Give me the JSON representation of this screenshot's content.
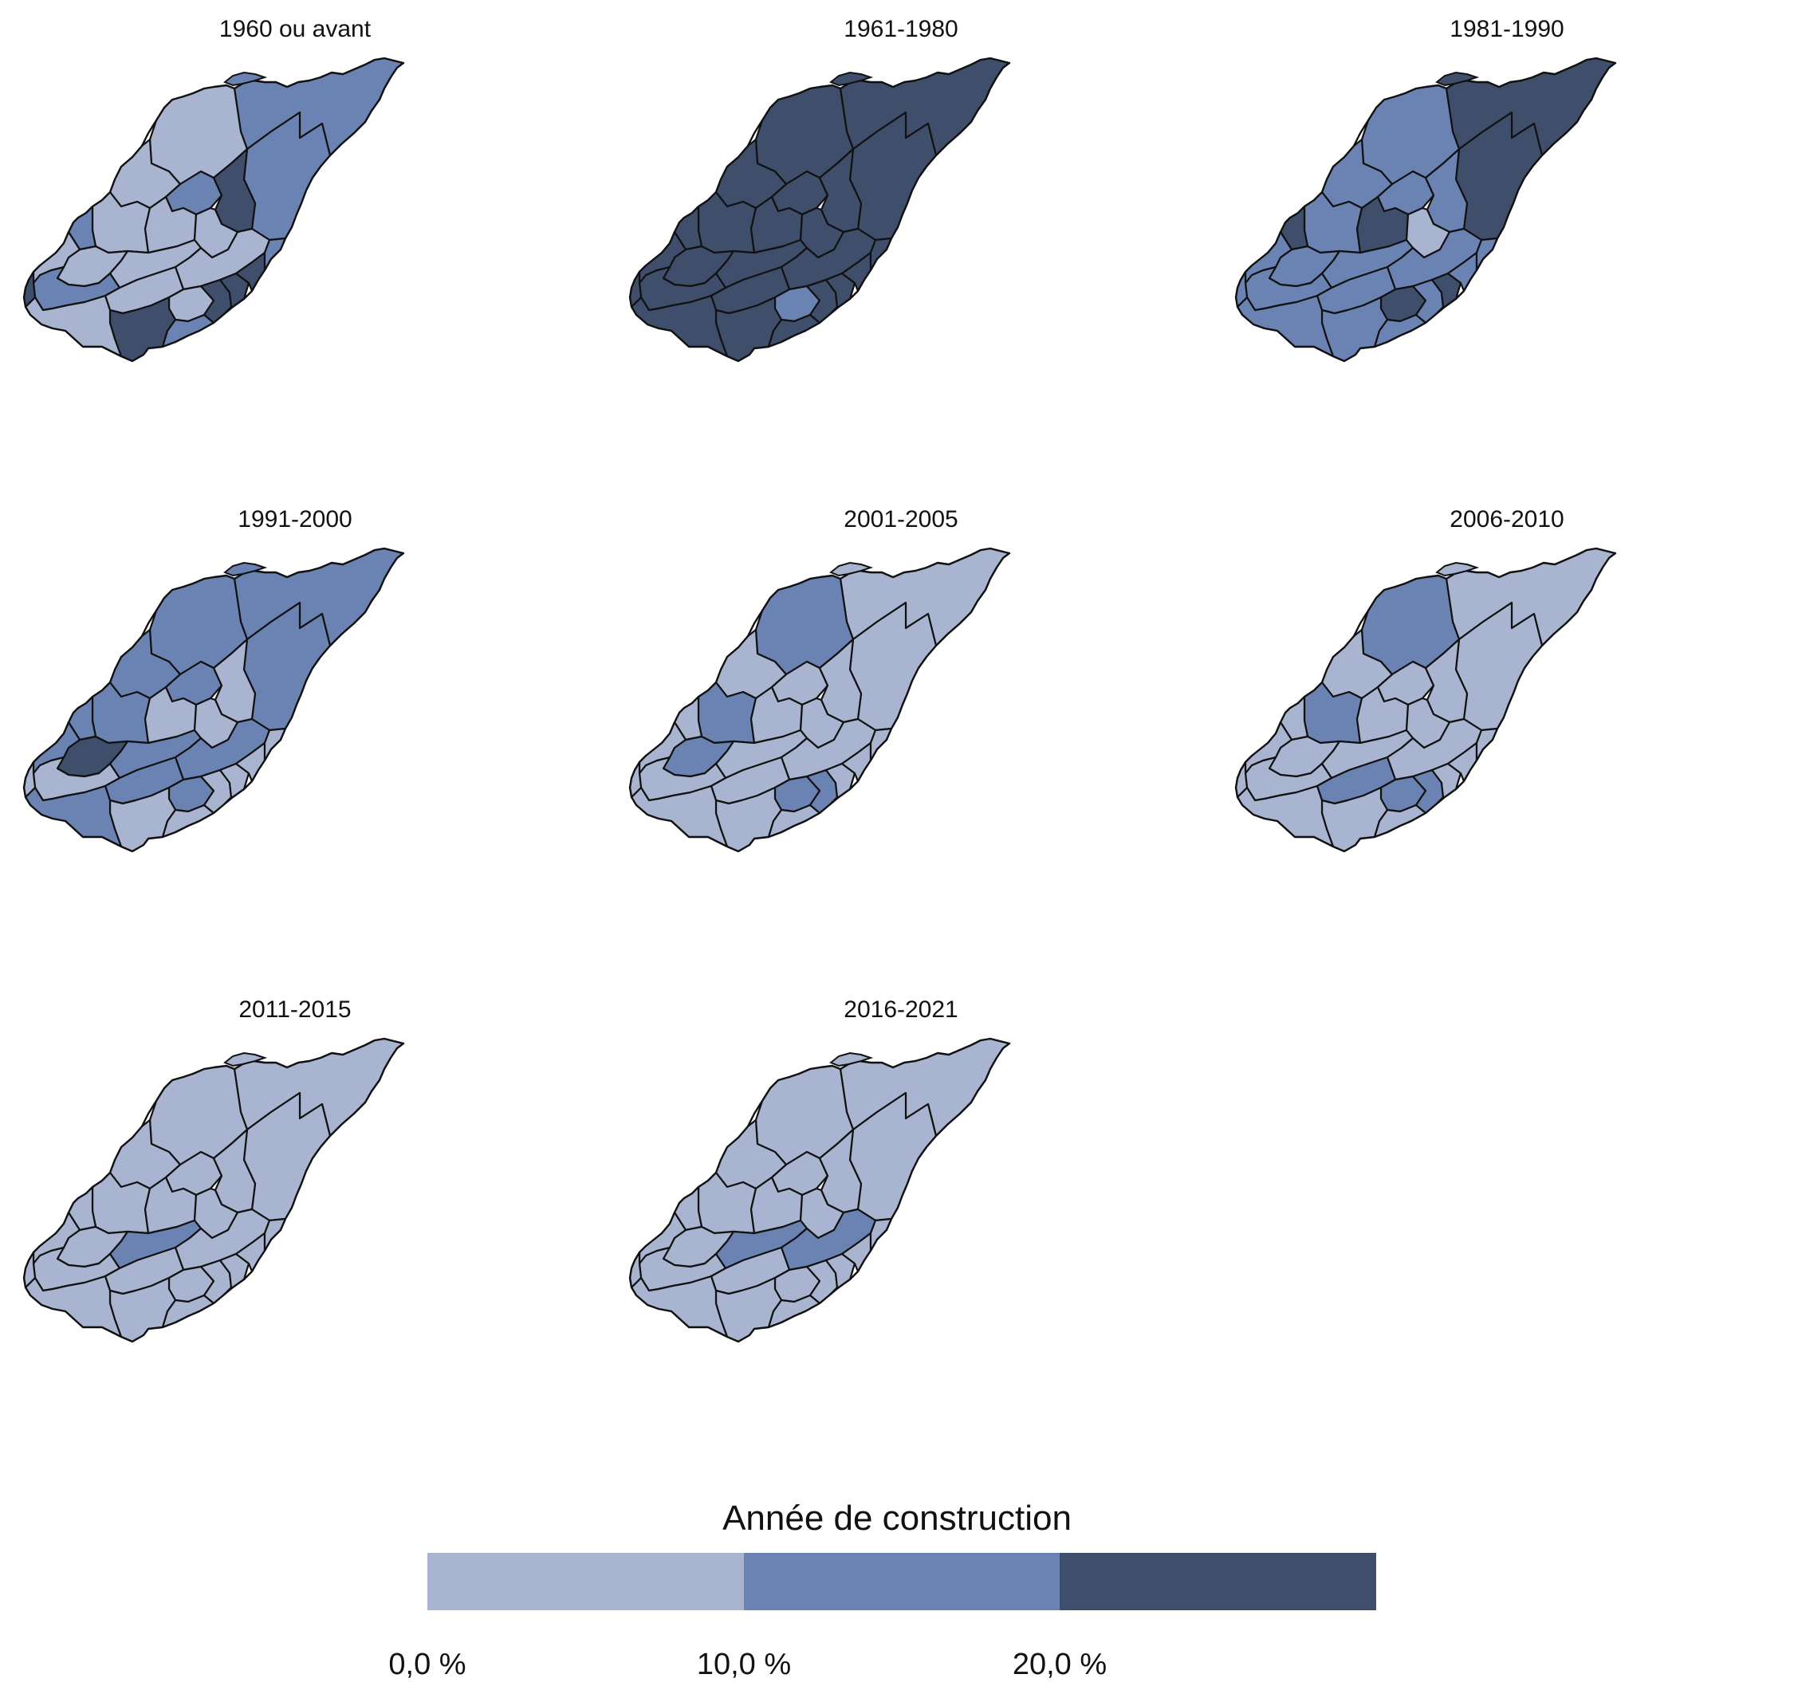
{
  "palette": {
    "low": "#a8b4d0",
    "mid": "#6b83b3",
    "high": "#3f4e6b",
    "stroke": "#111111"
  },
  "maps": [
    {
      "title": "1960 ou avant",
      "classes": [
        1,
        1,
        0,
        0,
        1,
        2,
        0,
        1,
        0,
        0,
        0,
        0,
        0,
        1,
        0,
        0,
        0,
        2,
        2,
        2,
        1,
        2,
        1,
        0,
        2
      ]
    },
    {
      "title": "1961-1980",
      "classes": [
        2,
        2,
        2,
        2,
        2,
        2,
        2,
        2,
        2,
        2,
        2,
        2,
        2,
        2,
        2,
        2,
        1,
        2,
        2,
        2,
        2,
        2,
        2,
        2,
        2
      ]
    },
    {
      "title": "1981-1990",
      "classes": [
        2,
        2,
        1,
        1,
        1,
        1,
        1,
        2,
        2,
        0,
        1,
        1,
        1,
        1,
        1,
        1,
        2,
        1,
        2,
        1,
        1,
        1,
        1,
        1,
        1
      ]
    },
    {
      "title": "1991-2000",
      "classes": [
        1,
        1,
        1,
        1,
        1,
        0,
        1,
        1,
        0,
        0,
        2,
        1,
        1,
        0,
        1,
        1,
        1,
        0,
        0,
        0,
        0,
        0,
        0,
        1,
        0
      ]
    },
    {
      "title": "2001-2005",
      "classes": [
        0,
        0,
        1,
        0,
        0,
        0,
        1,
        0,
        0,
        0,
        1,
        0,
        0,
        0,
        0,
        0,
        1,
        1,
        0,
        0,
        0,
        0,
        0,
        0,
        0
      ]
    },
    {
      "title": "2006-2010",
      "classes": [
        0,
        0,
        1,
        0,
        0,
        0,
        1,
        0,
        0,
        0,
        0,
        0,
        0,
        0,
        0,
        1,
        1,
        1,
        0,
        0,
        0,
        0,
        0,
        0,
        0
      ]
    },
    {
      "title": "2011-2015",
      "classes": [
        0,
        0,
        0,
        0,
        0,
        0,
        0,
        0,
        0,
        0,
        0,
        1,
        0,
        0,
        0,
        0,
        0,
        0,
        0,
        0,
        0,
        0,
        0,
        0,
        0
      ]
    },
    {
      "title": "2016-2021",
      "classes": [
        0,
        0,
        0,
        0,
        0,
        0,
        0,
        0,
        0,
        0,
        0,
        1,
        1,
        0,
        0,
        0,
        0,
        0,
        0,
        0,
        0,
        0,
        0,
        0,
        0
      ]
    }
  ],
  "legend": {
    "title": "Année de construction",
    "ticks": [
      "0,0 %",
      "10,0 %",
      "20,0 %"
    ]
  }
}
